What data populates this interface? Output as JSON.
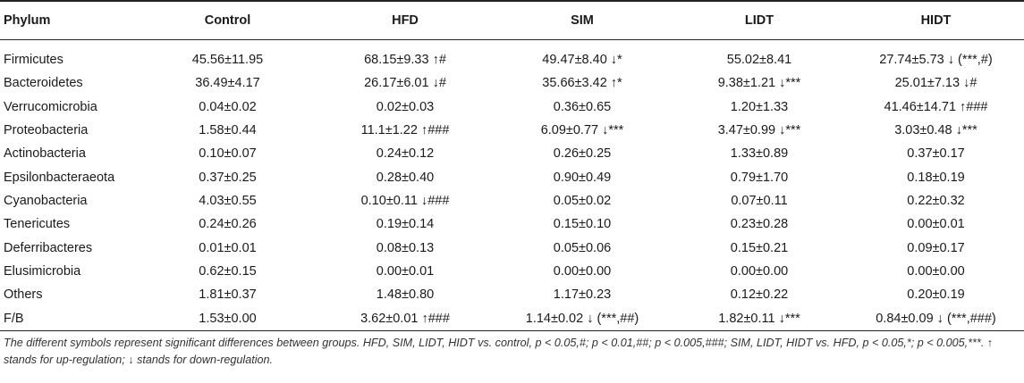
{
  "table": {
    "headers": [
      "Phylum",
      "Control",
      "HFD",
      "SIM",
      "LIDT",
      "HIDT"
    ],
    "rows": [
      [
        "Firmicutes",
        "45.56±11.95",
        "68.15±9.33 ↑#",
        "49.47±8.40 ↓*",
        "55.02±8.41",
        "27.74±5.73 ↓ (***,#)"
      ],
      [
        "Bacteroidetes",
        "36.49±4.17",
        "26.17±6.01 ↓#",
        "35.66±3.42 ↑*",
        "9.38±1.21 ↓***",
        "25.01±7.13 ↓#"
      ],
      [
        "Verrucomicrobia",
        "0.04±0.02",
        "0.02±0.03",
        "0.36±0.65",
        "1.20±1.33",
        "41.46±14.71 ↑###"
      ],
      [
        "Proteobacteria",
        "1.58±0.44",
        "11.1±1.22 ↑###",
        "6.09±0.77 ↓***",
        "3.47±0.99 ↓***",
        "3.03±0.48 ↓***"
      ],
      [
        "Actinobacteria",
        "0.10±0.07",
        "0.24±0.12",
        "0.26±0.25",
        "1.33±0.89",
        "0.37±0.17"
      ],
      [
        "Epsilonbacteraeota",
        "0.37±0.25",
        "0.28±0.40",
        "0.90±0.49",
        "0.79±1.70",
        "0.18±0.19"
      ],
      [
        "Cyanobacteria",
        "4.03±0.55",
        "0.10±0.11 ↓###",
        "0.05±0.02",
        "0.07±0.11",
        "0.22±0.32"
      ],
      [
        "Tenericutes",
        "0.24±0.26",
        "0.19±0.14",
        "0.15±0.10",
        "0.23±0.28",
        "0.00±0.01"
      ],
      [
        "Deferribacteres",
        "0.01±0.01",
        "0.08±0.13",
        "0.05±0.06",
        "0.15±0.21",
        "0.09±0.17"
      ],
      [
        "Elusimicrobia",
        "0.62±0.15",
        "0.00±0.01",
        "0.00±0.00",
        "0.00±0.00",
        "0.00±0.00"
      ],
      [
        "Others",
        "1.81±0.37",
        "1.48±0.80",
        "1.17±0.23",
        "0.12±0.22",
        "0.20±0.19"
      ],
      [
        "F/B",
        "1.53±0.00",
        "3.62±0.01 ↑###",
        "1.14±0.02 ↓ (***,##)",
        "1.82±0.11 ↓***",
        "0.84±0.09 ↓ (***,###)"
      ]
    ]
  },
  "footnote": "The different symbols represent significant differences between groups. HFD, SIM, LIDT, HIDT vs. control, p < 0.05,#; p < 0.01,##; p < 0.005,###; SIM, LIDT, HIDT vs. HFD, p < 0.05,*; p < 0.005,***. ↑ stands for up-regulation; ↓ stands for down-regulation."
}
